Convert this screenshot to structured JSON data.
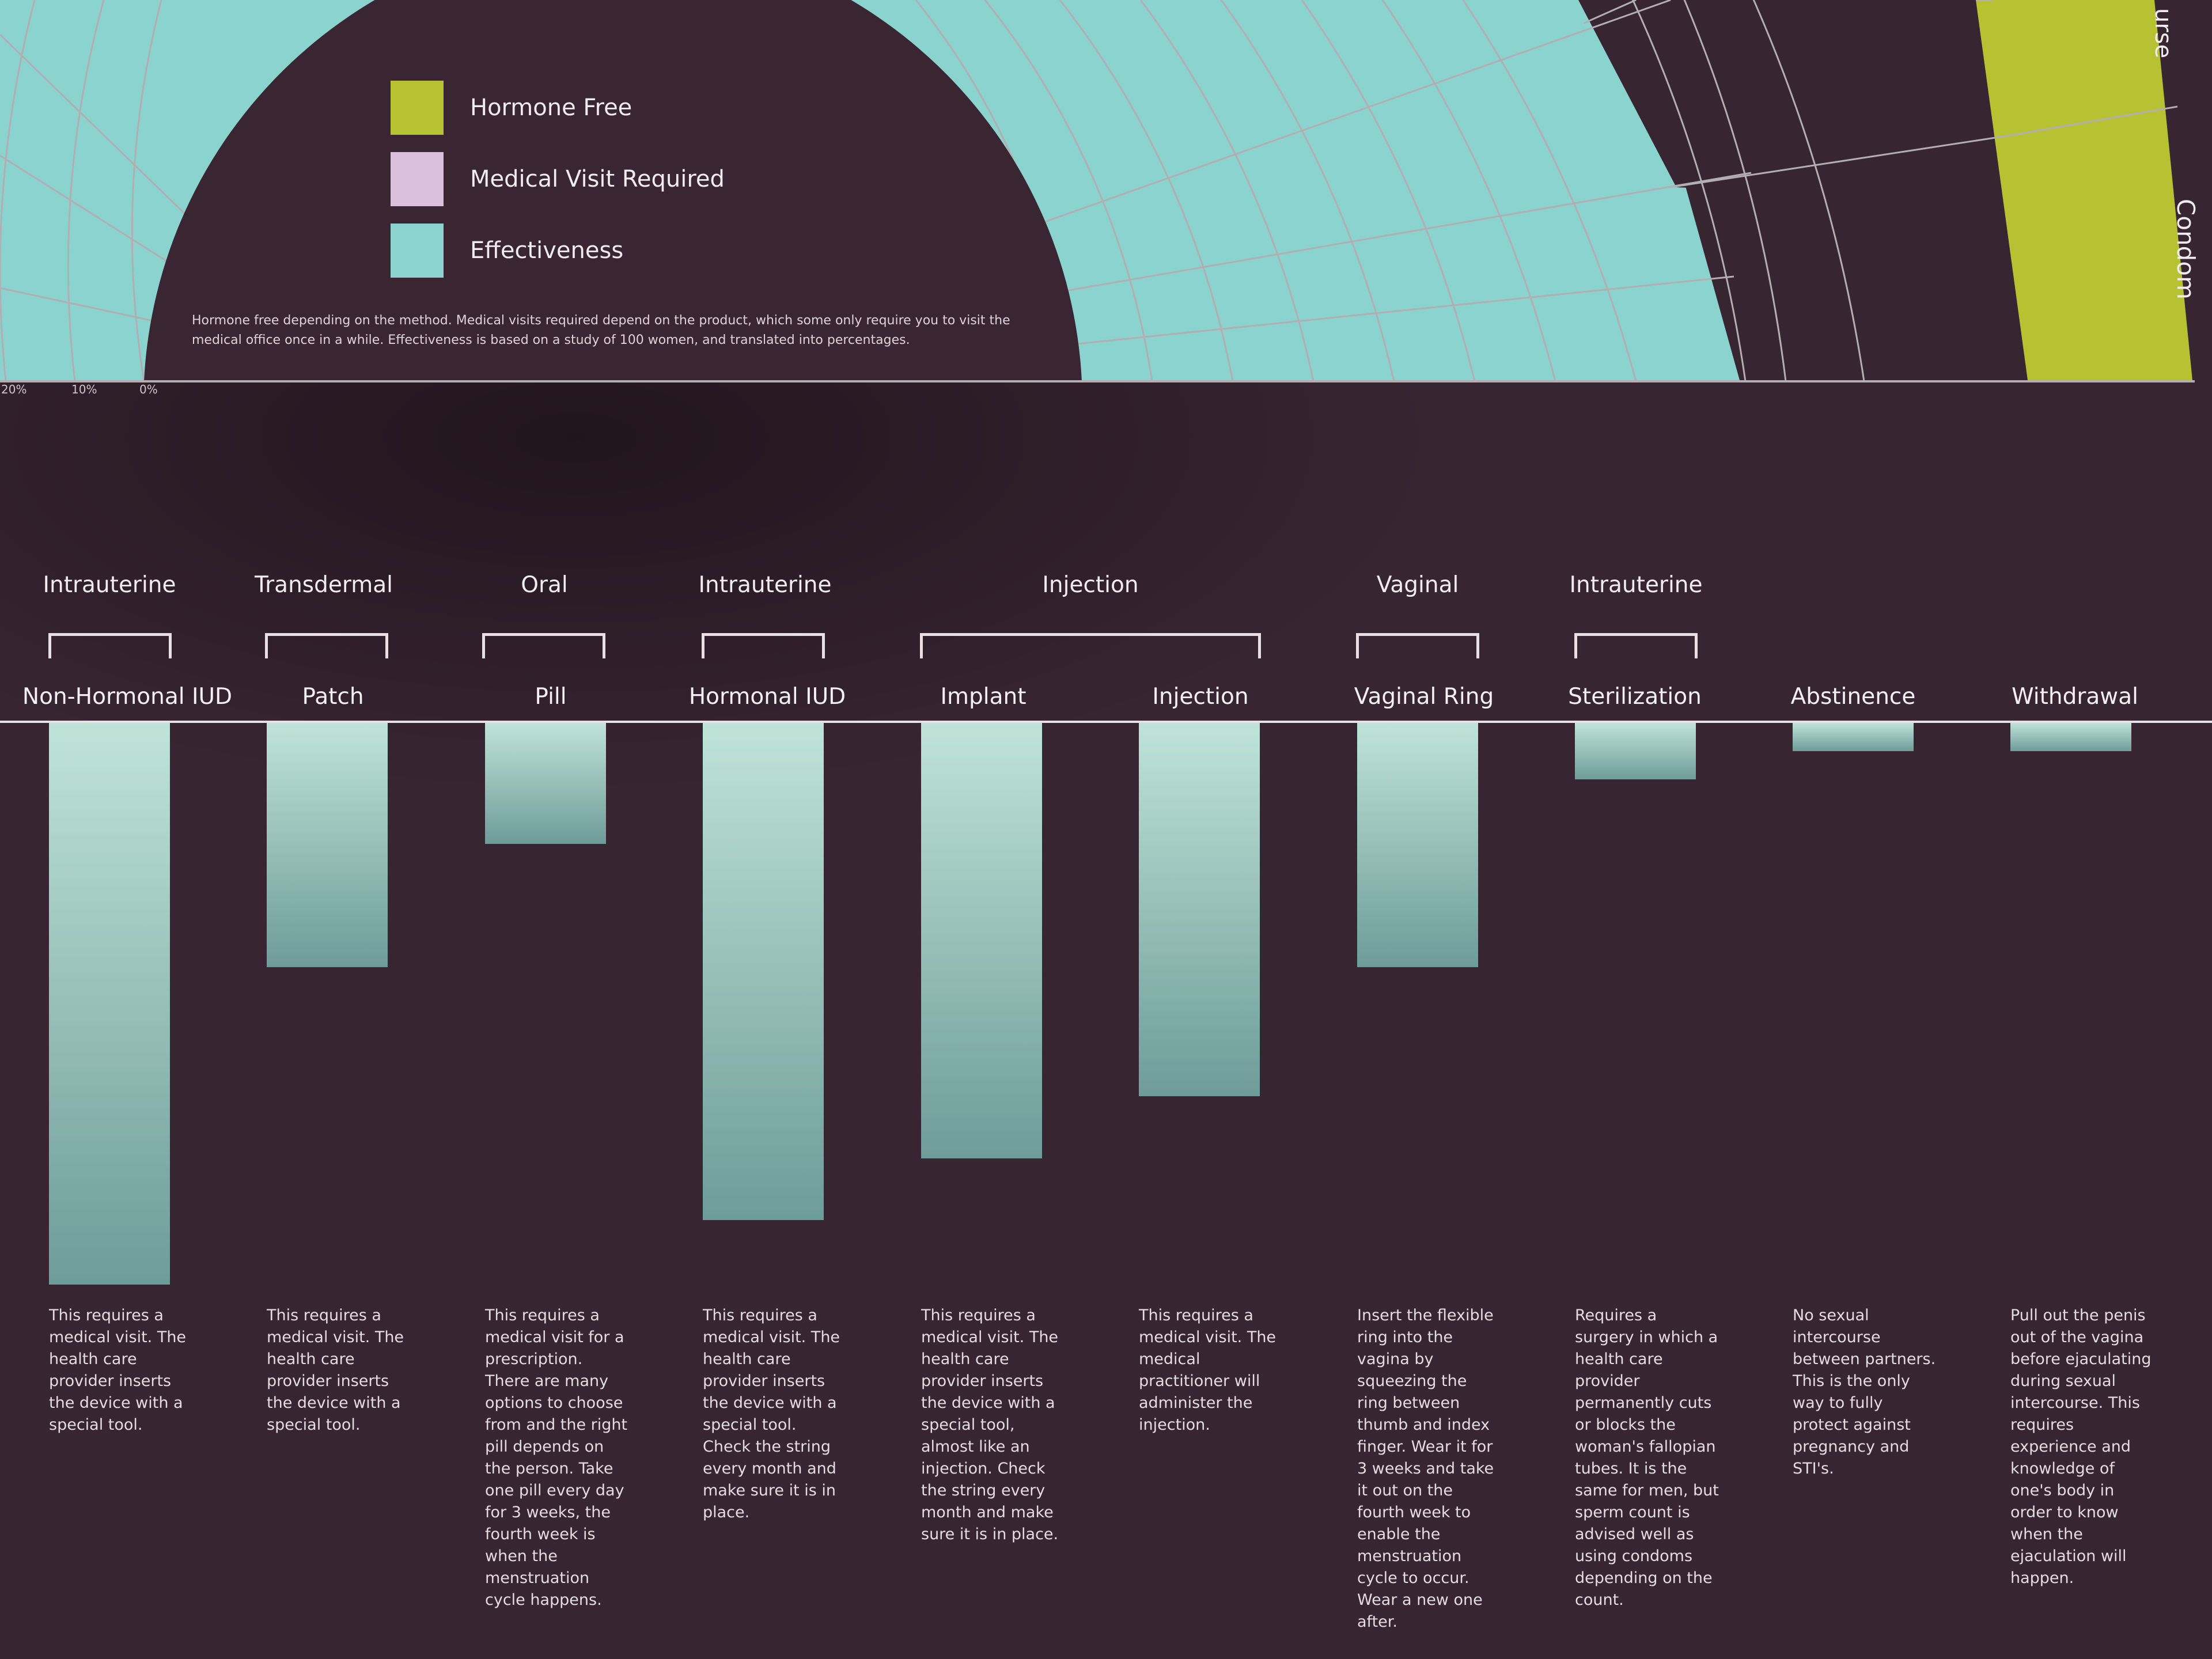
{
  "colors": {
    "background": "#382532",
    "hormone_free": "#b6c232",
    "medical_visit_required": "#dcbfdc",
    "effectiveness": "#8bd3cf",
    "grid": "#b2aeb2",
    "bar_top": "#bfe3d7",
    "bar_bottom": "#6e9c99"
  },
  "legend": {
    "items": [
      {
        "label": "Hormone Free",
        "color": "#b6c232"
      },
      {
        "label": "Medical Visit Required",
        "color": "#dcbfdc"
      },
      {
        "label": "Effectiveness",
        "color": "#8bd3cf"
      }
    ],
    "note": "Hormone free depending on the method. Medical visits required depend on the product, which some only require you to visit the medical office once in a while. Effectiveness is based on a study of 100 women, and translated into percentages."
  },
  "radial_axis": {
    "tick_labels": [
      "20%",
      "10%",
      "0%"
    ]
  },
  "radial_labels": {
    "partial_top": "urse",
    "condom": "Condom"
  },
  "chart_data": {
    "type": "bar",
    "title": "",
    "xlabel": "",
    "ylabel": "",
    "groups": [
      {
        "label": "Intrauterine",
        "methods": [
          "Non-Hormonal IUD"
        ]
      },
      {
        "label": "Transdermal",
        "methods": [
          "Patch"
        ]
      },
      {
        "label": "Oral",
        "methods": [
          "Pill"
        ]
      },
      {
        "label": "Intrauterine",
        "methods": [
          "Hormonal IUD"
        ]
      },
      {
        "label": "Injection",
        "methods": [
          "Implant",
          "Injection"
        ]
      },
      {
        "label": "Vaginal",
        "methods": [
          "Vaginal Ring"
        ]
      },
      {
        "label": "Intrauterine",
        "methods": [
          "Sterilization"
        ]
      },
      {
        "label": "",
        "methods": [
          "Abstinence"
        ]
      },
      {
        "label": "",
        "methods": [
          "Withdrawal"
        ]
      }
    ],
    "categories": [
      "Non-Hormonal IUD",
      "Patch",
      "Pill",
      "Hormonal IUD",
      "Implant",
      "Injection",
      "Vaginal Ring",
      "Sterilization",
      "Abstinence",
      "Withdrawal"
    ],
    "values": [
      100,
      43.5,
      21.5,
      88.5,
      77.5,
      66.5,
      43.5,
      10,
      5,
      5
    ],
    "ylim": [
      0,
      100
    ],
    "descriptions": [
      "This requires a medical visit. The health care provider inserts the device with a special tool.",
      "This requires a medical visit. The health care provider inserts the device with a special tool.",
      "This requires a medical visit for a prescription. There are many options to choose from and the right pill depends on the person. Take one pill every day for 3 weeks, the fourth week is when the menstruation cycle happens.",
      "This requires a medical visit. The health care provider inserts the device with a special tool. Check the string every month and make sure it is in place.",
      "This requires a medical visit. The health care provider inserts the device with a special tool, almost like an injection. Check the string every month and make sure it is in place.",
      "This requires a medical visit. The medical practitioner will administer the injection.",
      "Insert the flexible ring into the vagina by squeezing the ring between thumb and index finger. Wear it for 3 weeks and take it out on the fourth week to enable the menstruation cycle to occur. Wear a new one after.",
      "Requires a surgery in which a health care provider permanently cuts or blocks the woman's fallopian tubes. It is the same for men, but sperm count is advised well as using condoms depending on the count.",
      "No sexual intercourse between partners. This is the only way to fully protect against pregnancy and STI's.",
      "Pull out the penis out of the vagina before ejaculating during sexual intercourse. This requires experience and knowledge of one's body in order to know when the ejaculation will happen."
    ]
  }
}
